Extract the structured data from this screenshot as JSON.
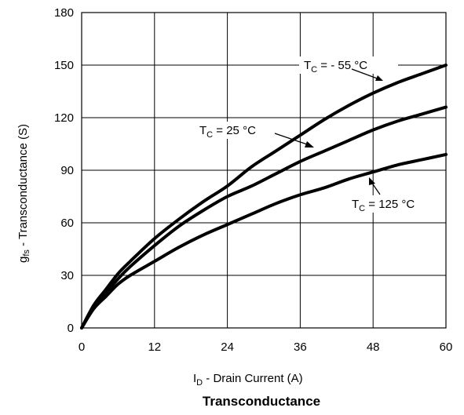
{
  "chart_data": {
    "type": "line",
    "title": "Transconductance",
    "xlabel": {
      "main": "I",
      "sub": "D",
      "rest": " - Drain Current (A)"
    },
    "ylabel": {
      "main": "g",
      "sub": "fs",
      "rest": " - Transconductance (S)"
    },
    "xlim": [
      0,
      60
    ],
    "ylim": [
      0,
      180
    ],
    "xticks": [
      0,
      12,
      24,
      36,
      48,
      60
    ],
    "yticks": [
      0,
      30,
      60,
      90,
      120,
      150,
      180
    ],
    "grid": true,
    "series": [
      {
        "name": {
          "main": "T",
          "sub": "C",
          "rest": " = - 55 °C"
        },
        "x": [
          0,
          2,
          4,
          6,
          8,
          12,
          16,
          20,
          24,
          28,
          32,
          36,
          40,
          44,
          48,
          52,
          56,
          60
        ],
        "y": [
          0,
          13,
          22,
          31,
          38,
          51,
          62,
          72,
          81,
          92,
          101,
          110,
          119,
          127,
          134,
          140,
          145,
          150
        ]
      },
      {
        "name": {
          "main": "T",
          "sub": "C",
          "rest": " = 25 °C"
        },
        "x": [
          0,
          2,
          4,
          6,
          8,
          12,
          16,
          20,
          24,
          28,
          32,
          36,
          40,
          44,
          48,
          52,
          56,
          60
        ],
        "y": [
          0,
          12,
          20,
          28,
          35,
          47,
          58,
          67,
          75,
          81,
          88,
          95,
          101,
          107,
          113,
          118,
          122,
          126
        ]
      },
      {
        "name": {
          "main": "T",
          "sub": "C",
          "rest": " = 125 °C"
        },
        "x": [
          0,
          2,
          4,
          6,
          8,
          12,
          16,
          20,
          24,
          28,
          32,
          36,
          40,
          44,
          48,
          52,
          56,
          60
        ],
        "y": [
          0,
          11,
          18,
          25,
          30,
          38,
          46,
          53,
          59,
          65,
          71,
          76,
          80,
          85,
          89,
          93,
          96,
          99
        ]
      }
    ]
  }
}
